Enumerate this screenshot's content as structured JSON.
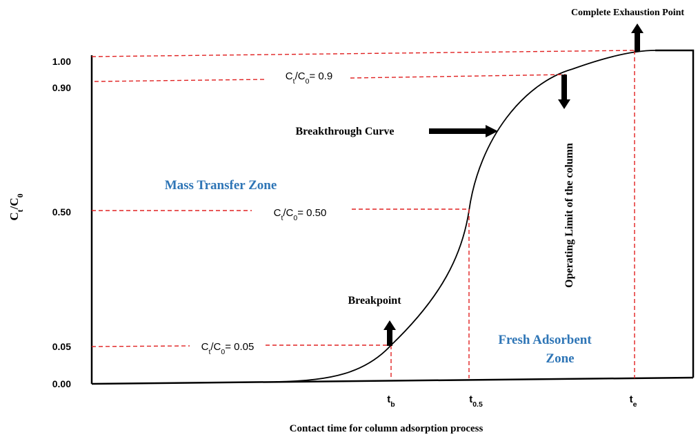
{
  "y_axis": {
    "label": [
      "C",
      "t",
      "/C",
      "0"
    ],
    "ticks": [
      "1.00",
      "0.90",
      "0.50",
      "0.05",
      "0.00"
    ]
  },
  "x_axis": {
    "label": "Contact time for column adsorption process",
    "ticks": [
      [
        "t",
        "b"
      ],
      [
        "t",
        "0.5"
      ],
      [
        "t",
        "e"
      ]
    ]
  },
  "ratio_labels": [
    [
      "C",
      "t",
      "/C",
      "0",
      "= 0.9"
    ],
    [
      "C",
      "t",
      "/C",
      "0",
      "= 0.50"
    ],
    [
      "C",
      "t",
      "/C",
      "0",
      "= 0.05"
    ]
  ],
  "annotations": {
    "exhaustion": "Complete Exhaustion Point",
    "curve": "Breakthrough Curve",
    "mass_transfer": "Mass Transfer Zone",
    "breakpoint": "Breakpoint",
    "operating_limit": "Operating Limit of the column",
    "fresh": [
      "Fresh Adsorbent",
      "Zone"
    ]
  }
}
